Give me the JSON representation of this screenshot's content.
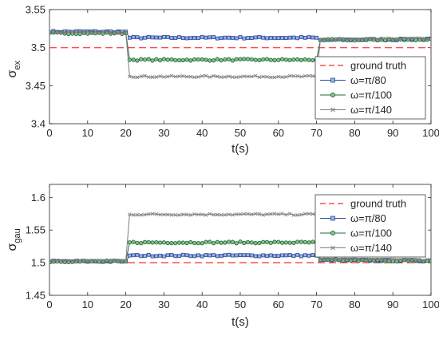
{
  "chart_data": [
    {
      "type": "line",
      "xlabel": "t(s)",
      "ylabel_main": "σ",
      "ylabel_sub": "ex",
      "xlim": [
        0,
        100
      ],
      "ylim": [
        3.4,
        3.55
      ],
      "xticks": [
        "0",
        "10",
        "20",
        "30",
        "40",
        "50",
        "60",
        "70",
        "80",
        "90",
        "100"
      ],
      "yticks": [
        "3.4",
        "3.45",
        "3.5",
        "3.55"
      ],
      "ytick_values": [
        3.4,
        3.45,
        3.5,
        3.55
      ],
      "legend_position": "bottom-right",
      "grid": false,
      "series": [
        {
          "name": "ground truth",
          "style": "dashed",
          "color": "#ff4d4d",
          "constant": 3.5
        },
        {
          "name": "ω=π/80",
          "marker": "square",
          "color": "#2e4a9e",
          "segments": [
            [
              0,
              3.521
            ],
            [
              20,
              3.521
            ],
            [
              21,
              3.513
            ],
            [
              70,
              3.513
            ],
            [
              71,
              3.51
            ],
            [
              100,
              3.511
            ]
          ]
        },
        {
          "name": "ω=π/100",
          "marker": "circle",
          "color": "#1f6b3a",
          "segments": [
            [
              0,
              3.519
            ],
            [
              20,
              3.519
            ],
            [
              21,
              3.484
            ],
            [
              70,
              3.484
            ],
            [
              71,
              3.51
            ],
            [
              100,
              3.511
            ]
          ]
        },
        {
          "name": "ω=π/140",
          "marker": "x",
          "color": "#7f7f7f",
          "segments": [
            [
              0,
              3.52
            ],
            [
              20,
              3.52
            ],
            [
              21,
              3.462
            ],
            [
              70,
              3.462
            ],
            [
              71,
              3.51
            ],
            [
              100,
              3.512
            ]
          ]
        }
      ]
    },
    {
      "type": "line",
      "xlabel": "t(s)",
      "ylabel_main": "σ",
      "ylabel_sub": "gau",
      "xlim": [
        0,
        100
      ],
      "ylim": [
        1.45,
        1.62
      ],
      "xticks": [
        "0",
        "10",
        "20",
        "30",
        "40",
        "50",
        "60",
        "70",
        "80",
        "90",
        "100"
      ],
      "yticks": [
        "1.45",
        "1.5",
        "1.55",
        "1.6"
      ],
      "ytick_values": [
        1.45,
        1.5,
        1.55,
        1.6
      ],
      "legend_position": "top-right",
      "grid": false,
      "series": [
        {
          "name": "ground truth",
          "style": "dashed",
          "color": "#ff4d4d",
          "constant": 1.5
        },
        {
          "name": "ω=π/80",
          "marker": "square",
          "color": "#2e4a9e",
          "segments": [
            [
              0,
              1.502
            ],
            [
              20,
              1.502
            ],
            [
              21,
              1.511
            ],
            [
              70,
              1.511
            ],
            [
              71,
              1.504
            ],
            [
              100,
              1.503
            ]
          ]
        },
        {
          "name": "ω=π/100",
          "marker": "circle",
          "color": "#1f6b3a",
          "segments": [
            [
              0,
              1.502
            ],
            [
              20,
              1.502
            ],
            [
              21,
              1.531
            ],
            [
              70,
              1.531
            ],
            [
              71,
              1.504
            ],
            [
              100,
              1.503
            ]
          ]
        },
        {
          "name": "ω=π/140",
          "marker": "x",
          "color": "#7f7f7f",
          "segments": [
            [
              0,
              1.503
            ],
            [
              20,
              1.503
            ],
            [
              21,
              1.574
            ],
            [
              70,
              1.574
            ],
            [
              71,
              1.505
            ],
            [
              100,
              1.504
            ]
          ]
        }
      ]
    }
  ]
}
